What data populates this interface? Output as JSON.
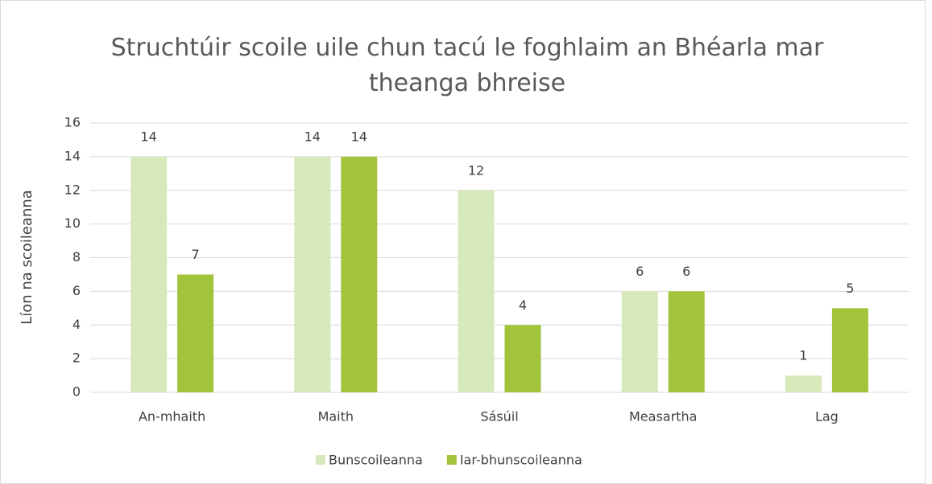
{
  "chart_data": {
    "type": "bar",
    "title": "Struchtúir scoile uile chun tacú le foghlaim an Bhéarla mar theanga bhreise",
    "y_label": "Líon na scoileanna",
    "categories": [
      "An-mhaith",
      "Maith",
      "Sásúil",
      "Measartha",
      "Lag"
    ],
    "series": [
      {
        "name": "Bunscoileanna",
        "color": "#d7e8bb",
        "values": [
          14,
          14,
          12,
          6,
          1
        ]
      },
      {
        "name": "Iar-bhunscoileanna",
        "color": "#a2c43a",
        "values": [
          7,
          14,
          4,
          6,
          5
        ]
      }
    ],
    "ylim": [
      0,
      16
    ],
    "yticks": [
      0,
      2,
      4,
      6,
      8,
      10,
      12,
      14,
      16
    ],
    "grid": true,
    "legend": "bottom"
  }
}
